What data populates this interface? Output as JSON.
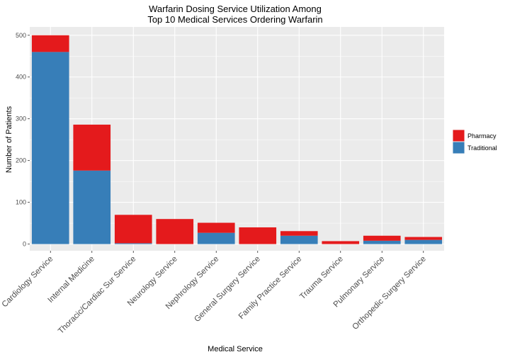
{
  "chart_data": {
    "type": "bar",
    "stacked": true,
    "title": "Warfarin Dosing Service Utilization Among",
    "subtitle": "Top 10 Medical Services Ordering Warfarin",
    "xlabel": "Medical Service",
    "ylabel": "Number of Patients",
    "ylim": [
      -16,
      520
    ],
    "yticks": [
      0,
      100,
      200,
      300,
      400,
      500
    ],
    "grid": true,
    "legend_position": "right",
    "categories": [
      "Cardiology Service",
      "Internal Medicine",
      "Thoracic/Cardiac Sur Service",
      "Neurology Service",
      "Nephrology Service",
      "General Surgery Service",
      "Family Practice Service",
      "Trauma Service",
      "Pulmonary Service",
      "Orthopedic Surgery Service"
    ],
    "series": [
      {
        "name": "Traditional",
        "color": "#377eb8",
        "values": [
          460,
          176,
          2,
          0,
          27,
          0,
          20,
          0,
          8,
          10
        ]
      },
      {
        "name": "Pharmacy",
        "color": "#e41a1c",
        "values": [
          40,
          110,
          68,
          60,
          24,
          40,
          11,
          7,
          12,
          7
        ]
      }
    ],
    "legend_order": [
      "Pharmacy",
      "Traditional"
    ],
    "panel_background": "#ebebeb",
    "grid_color": "#ffffff"
  }
}
